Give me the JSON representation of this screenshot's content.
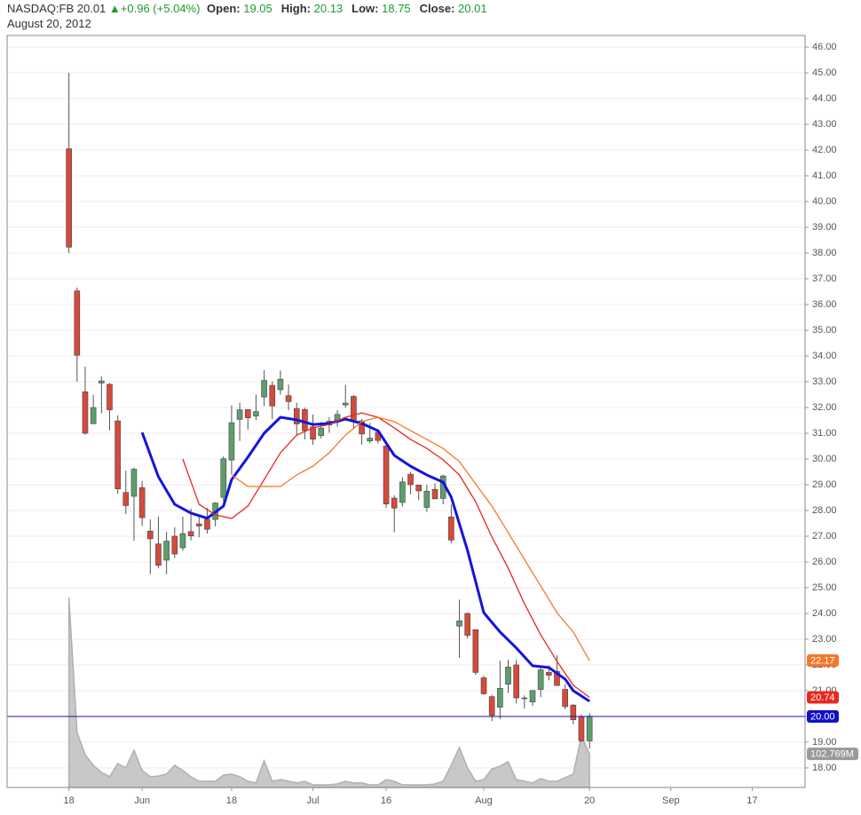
{
  "chart_data": {
    "type": "candlestick",
    "symbol": "NASDAQ:FB",
    "last": 20.01,
    "change": "+0.96 (+5.04%)",
    "quote": [
      {
        "label": "Open:",
        "value": 19.05
      },
      {
        "label": "High:",
        "value": 20.13
      },
      {
        "label": "Low:",
        "value": 18.75
      },
      {
        "label": "Close:",
        "value": 20.01
      }
    ],
    "date": "August 20, 2012",
    "x": [
      0,
      1,
      2,
      3,
      4,
      5,
      6,
      7,
      8,
      9,
      10,
      11,
      12,
      13,
      14,
      15,
      16,
      17,
      18,
      19,
      20,
      21,
      22,
      23,
      24,
      25,
      26,
      27,
      28,
      29,
      30,
      31,
      32,
      33,
      34,
      35,
      36,
      37,
      38,
      39,
      40,
      41,
      42,
      43,
      44,
      45,
      46,
      47,
      48,
      49,
      50,
      51,
      52,
      53,
      54,
      55,
      56,
      57,
      58,
      59,
      60,
      61,
      62,
      63,
      64
    ],
    "open": [
      42.05,
      36.53,
      32.61,
      31.37,
      32.95,
      32.9,
      31.48,
      28.7,
      28.55,
      28.89,
      27.2,
      26.7,
      26.07,
      27.0,
      26.55,
      27.18,
      27.48,
      27.66,
      27.65,
      28.51,
      29.96,
      31.54,
      31.92,
      31.67,
      32.41,
      32.86,
      32.69,
      32.46,
      31.96,
      31.92,
      31.25,
      30.91,
      31.32,
      31.44,
      32.1,
      32.43,
      31.48,
      30.7,
      31.04,
      30.5,
      28.48,
      28.31,
      29.41,
      28.99,
      28.12,
      28.82,
      28.47,
      27.75,
      23.51,
      24.0,
      23.37,
      21.5,
      20.77,
      20.36,
      21.25,
      22.0,
      20.7,
      20.56,
      21.05,
      21.71,
      21.75,
      21.05,
      20.44,
      20.0,
      19.05
    ],
    "high": [
      45.0,
      36.66,
      33.59,
      32.5,
      33.21,
      32.95,
      31.69,
      29.55,
      29.67,
      29.15,
      27.65,
      27.76,
      27.17,
      27.35,
      27.76,
      28.07,
      27.77,
      28.1,
      28.32,
      30.1,
      32.08,
      32.18,
      31.93,
      32.5,
      33.45,
      33.02,
      33.44,
      32.9,
      32.19,
      31.99,
      31.73,
      31.44,
      31.63,
      31.9,
      32.88,
      32.48,
      31.56,
      31.4,
      31.04,
      30.61,
      28.59,
      29.29,
      29.5,
      29.0,
      29.0,
      29.05,
      29.39,
      28.23,
      24.54,
      24.04,
      23.37,
      21.58,
      20.84,
      22.16,
      22.2,
      22.2,
      20.82,
      21.02,
      21.89,
      21.98,
      22.37,
      21.26,
      20.48,
      20.08,
      20.13
    ],
    "low": [
      38.0,
      33.0,
      30.94,
      31.36,
      31.77,
      31.11,
      28.65,
      27.86,
      26.83,
      27.39,
      25.52,
      25.75,
      25.52,
      26.15,
      26.44,
      26.84,
      26.96,
      27.1,
      27.38,
      28.35,
      29.41,
      30.7,
      31.15,
      31.51,
      32.06,
      31.55,
      32.5,
      31.9,
      30.9,
      30.76,
      30.55,
      30.8,
      31.02,
      31.26,
      31.99,
      31.16,
      30.55,
      30.6,
      30.6,
      28.1,
      27.15,
      28.15,
      28.63,
      28.4,
      27.95,
      28.45,
      28.24,
      26.73,
      22.28,
      23.03,
      21.61,
      20.84,
      19.82,
      19.9,
      20.91,
      20.5,
      20.3,
      20.41,
      20.75,
      21.4,
      21.31,
      20.27,
      19.69,
      19.0,
      18.75
    ],
    "close": [
      38.23,
      34.03,
      31.0,
      32.0,
      33.03,
      31.91,
      28.84,
      28.19,
      29.6,
      27.72,
      26.9,
      25.87,
      26.81,
      26.31,
      27.1,
      27.01,
      27.4,
      27.27,
      28.29,
      30.01,
      31.41,
      31.91,
      31.6,
      31.84,
      33.05,
      32.06,
      33.1,
      32.23,
      31.36,
      31.1,
      30.77,
      31.2,
      31.47,
      31.73,
      32.17,
      31.47,
      30.97,
      30.81,
      30.72,
      28.25,
      28.09,
      29.11,
      29.0,
      28.76,
      28.75,
      28.45,
      29.34,
      26.85,
      23.71,
      23.15,
      21.71,
      20.88,
      20.04,
      21.09,
      21.92,
      20.72,
      20.72,
      21.01,
      21.81,
      21.6,
      21.2,
      20.38,
      19.87,
      19.05,
      20.01
    ],
    "up_color": "#5d9e6c",
    "down_color": "#d64a3b",
    "xlim": [
      -7.6,
      90.5
    ],
    "xticks": [
      {
        "value": 0,
        "label": "18"
      },
      {
        "value": 9,
        "label": "Jun"
      },
      {
        "value": 20,
        "label": "18"
      },
      {
        "value": 30,
        "label": "Jul"
      },
      {
        "value": 39,
        "label": "16"
      },
      {
        "value": 51,
        "label": "Aug"
      },
      {
        "value": 64,
        "label": "20"
      },
      {
        "value": 74,
        "label": "Sep"
      },
      {
        "value": 84,
        "label": "17"
      }
    ],
    "ylim": [
      17.24,
      46.45
    ],
    "yticks": [
      {
        "value": 18,
        "label": "18.00"
      },
      {
        "value": 19,
        "label": "19.00"
      },
      {
        "value": 20,
        "label": "20.00"
      },
      {
        "value": 21,
        "label": "21.00"
      },
      {
        "value": 22,
        "label": "22.00"
      },
      {
        "value": 23,
        "label": "23.00"
      },
      {
        "value": 24,
        "label": "24.00"
      },
      {
        "value": 25,
        "label": "25.00"
      },
      {
        "value": 26,
        "label": "26.00"
      },
      {
        "value": 27,
        "label": "27.00"
      },
      {
        "value": 28,
        "label": "28.00"
      },
      {
        "value": 29,
        "label": "29.00"
      },
      {
        "value": 30,
        "label": "30.00"
      },
      {
        "value": 31,
        "label": "31.00"
      },
      {
        "value": 32,
        "label": "32.00"
      },
      {
        "value": 33,
        "label": "33.00"
      },
      {
        "value": 34,
        "label": "34.00"
      },
      {
        "value": 35,
        "label": "35.00"
      },
      {
        "value": 36,
        "label": "36.00"
      },
      {
        "value": 37,
        "label": "37.00"
      },
      {
        "value": 38,
        "label": "38.00"
      },
      {
        "value": 39,
        "label": "39.00"
      },
      {
        "value": 40,
        "label": "40.00"
      },
      {
        "value": 41,
        "label": "41.00"
      },
      {
        "value": 42,
        "label": "42.00"
      },
      {
        "value": 43,
        "label": "43.00"
      },
      {
        "value": 44,
        "label": "44.00"
      },
      {
        "value": 45,
        "label": "45.00"
      },
      {
        "value": 46,
        "label": "46.00"
      }
    ],
    "grid": true,
    "overlays": [
      {
        "type": "line",
        "color": "#1414dc",
        "width": 3,
        "x": [
          9,
          11,
          13,
          15,
          17,
          19,
          20,
          22,
          24,
          26,
          28,
          30,
          32,
          34,
          36,
          38,
          40,
          42,
          44,
          46,
          47,
          49,
          51,
          53,
          55,
          57,
          59,
          61,
          62,
          64
        ],
        "values": [
          31.03,
          29.31,
          28.24,
          27.9,
          27.7,
          28.17,
          29.2,
          30.07,
          31.0,
          31.62,
          31.52,
          31.34,
          31.38,
          31.55,
          31.38,
          31.1,
          30.14,
          29.72,
          29.38,
          29.1,
          28.52,
          26.45,
          24.03,
          23.28,
          22.66,
          21.97,
          21.9,
          21.45,
          21.0,
          20.59
        ]
      },
      {
        "type": "line",
        "color": "#e8281e",
        "width": 1.3,
        "x": [
          14,
          16,
          18,
          20,
          22,
          24,
          26,
          28,
          30,
          32,
          34,
          36,
          38,
          40,
          42,
          44,
          46,
          48,
          50,
          52,
          54,
          56,
          58,
          60,
          62,
          64
        ],
        "values": [
          30.0,
          28.24,
          27.83,
          27.69,
          28.17,
          29.2,
          30.24,
          30.93,
          31.21,
          31.34,
          31.62,
          31.79,
          31.62,
          31.21,
          30.76,
          30.41,
          29.97,
          29.38,
          28.34,
          26.97,
          25.76,
          24.38,
          23.17,
          22.14,
          21.21,
          20.74
        ]
      },
      {
        "type": "line",
        "color": "#f5782a",
        "width": 1.3,
        "x": [
          20,
          22,
          24,
          26,
          28,
          30,
          32,
          34,
          36,
          38,
          40,
          42,
          44,
          46,
          48,
          50,
          52,
          54,
          56,
          58,
          60,
          62,
          64
        ],
        "values": [
          29.38,
          28.93,
          28.93,
          28.93,
          29.38,
          29.72,
          30.24,
          30.93,
          31.45,
          31.62,
          31.45,
          31.1,
          30.76,
          30.41,
          29.9,
          29.03,
          28.17,
          27.14,
          26.1,
          25.07,
          24.03,
          23.28,
          22.17
        ]
      }
    ],
    "hline": {
      "value": 20,
      "label": "20.00",
      "color": "#1010c8"
    },
    "volume": {
      "type": "area",
      "color": "#c8c8c8",
      "ylim": [
        0,
        2300
      ],
      "values": [
        581,
        168,
        100,
        68,
        46,
        33,
        73,
        60,
        114,
        52,
        33,
        35,
        41,
        68,
        52,
        33,
        19,
        19,
        19,
        38,
        41,
        33,
        19,
        14,
        82,
        19,
        24,
        19,
        14,
        19,
        8,
        8,
        8,
        11,
        19,
        14,
        14,
        8,
        8,
        24,
        19,
        8,
        8,
        8,
        8,
        11,
        19,
        68,
        122,
        60,
        19,
        24,
        57,
        65,
        79,
        24,
        19,
        14,
        27,
        19,
        19,
        30,
        41,
        158,
        102.769
      ],
      "value_labels": [
        null,
        null,
        null,
        null,
        null,
        null,
        null,
        null,
        null,
        null,
        null,
        null,
        null,
        null,
        null,
        null,
        null,
        null,
        null,
        null,
        null,
        null,
        null,
        null,
        null,
        null,
        null,
        null,
        null,
        null,
        null,
        null,
        null,
        null,
        null,
        null,
        null,
        null,
        null,
        null,
        null,
        null,
        null,
        null,
        null,
        null,
        null,
        null,
        null,
        null,
        null,
        null,
        null,
        null,
        null,
        null,
        null,
        null,
        null,
        null,
        null,
        null,
        null,
        null,
        "102.769M"
      ]
    }
  }
}
